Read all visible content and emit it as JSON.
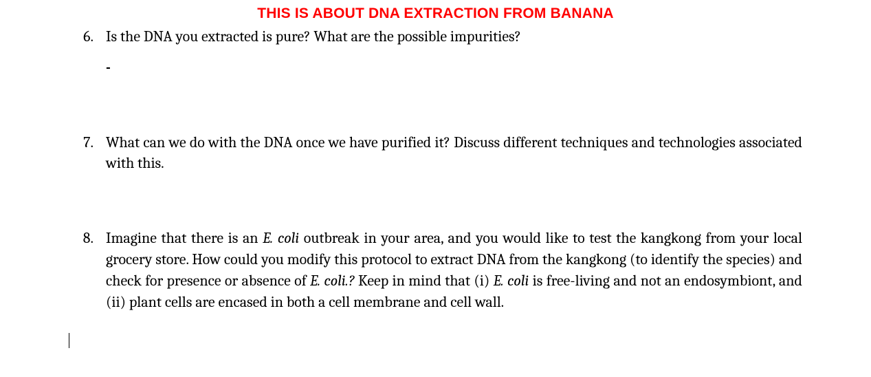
{
  "document": {
    "title": "THIS IS ABOUT DNA EXTRACTION FROM BANANA",
    "title_color": "#ff0000",
    "title_fontfamily": "Arial",
    "title_fontsize": 21,
    "body_fontfamily": "Cambria",
    "body_fontsize": 22,
    "body_color": "#000000",
    "background_color": "#ffffff",
    "questions": [
      {
        "number": "6.",
        "text_parts": [
          {
            "text": "Is the DNA you extracted is pure? What are the possible impurities?",
            "italic": false
          }
        ],
        "answer_placeholder": "-"
      },
      {
        "number": "7.",
        "text_parts": [
          {
            "text": "What can we do with the DNA once we have purified it? Discuss different techniques and technologies associated with this.",
            "italic": false
          }
        ]
      },
      {
        "number": "8.",
        "text_parts": [
          {
            "text": "Imagine that there is an ",
            "italic": false
          },
          {
            "text": "E. coli",
            "italic": true
          },
          {
            "text": " outbreak in your area, and you would like to test the kangkong from your local grocery store. How could you modify this protocol to extract DNA from the kangkong (to identify the species) and check for presence or absence of ",
            "italic": false
          },
          {
            "text": "E. coli.?",
            "italic": true
          },
          {
            "text": " Keep in mind that (i) ",
            "italic": false
          },
          {
            "text": "E. coli",
            "italic": true
          },
          {
            "text": " is free-living and not an endosymbiont, and (ii) plant cells are encased in both a cell membrane and cell wall.",
            "italic": false
          }
        ]
      }
    ]
  }
}
